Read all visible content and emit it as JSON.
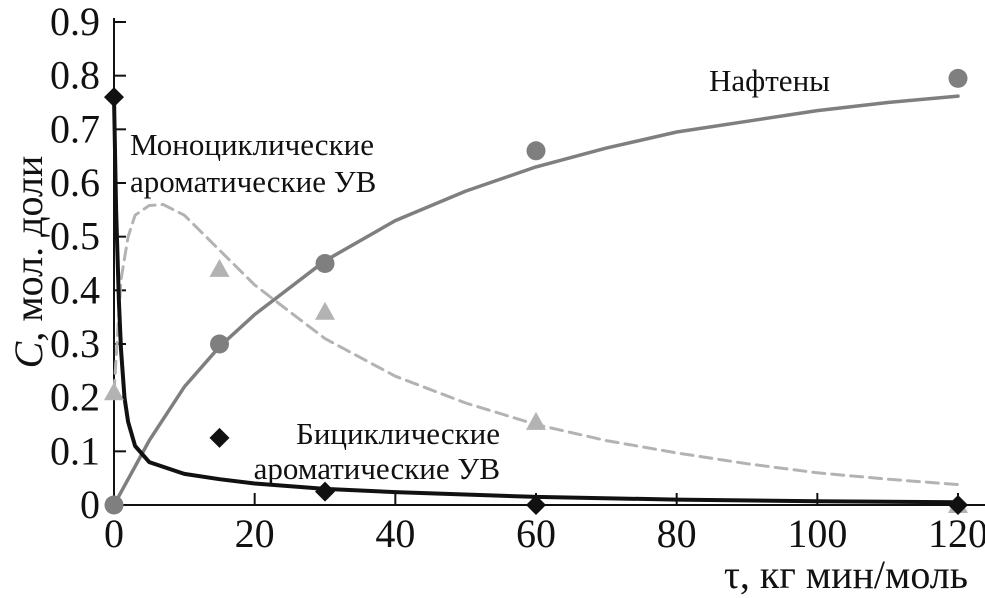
{
  "chart_data": {
    "type": "scatter",
    "xlabel": "τ, кг мин/моль",
    "ylabel_italic": "C",
    "ylabel_rest": ", мол. доли",
    "xlim": [
      0,
      120
    ],
    "ylim": [
      0,
      0.9
    ],
    "xticks": [
      0,
      20,
      40,
      60,
      80,
      100,
      120
    ],
    "yticks": [
      0,
      0.1,
      0.2,
      0.3,
      0.4,
      0.5,
      0.6,
      0.7,
      0.8,
      0.9
    ],
    "xtick_labels": [
      "0",
      "20",
      "40",
      "60",
      "80",
      "100",
      "120"
    ],
    "ytick_labels": [
      "0",
      "0.1",
      "0.2",
      "0.3",
      "0.4",
      "0.5",
      "0.6",
      "0.7",
      "0.8",
      "0.9"
    ],
    "grid": false,
    "series": [
      {
        "name": "Нафтены",
        "label_lines": [
          "Нафтены"
        ],
        "marker": "circle",
        "color": "#7f7f7f",
        "line_style": "solid",
        "points": [
          [
            0,
            0
          ],
          [
            15,
            0.3
          ],
          [
            30,
            0.45
          ],
          [
            60,
            0.66
          ],
          [
            120,
            0.795
          ]
        ],
        "fit": [
          [
            0,
            0
          ],
          [
            5,
            0.12
          ],
          [
            10,
            0.22
          ],
          [
            15,
            0.295
          ],
          [
            20,
            0.355
          ],
          [
            30,
            0.455
          ],
          [
            40,
            0.53
          ],
          [
            50,
            0.585
          ],
          [
            60,
            0.63
          ],
          [
            70,
            0.665
          ],
          [
            80,
            0.695
          ],
          [
            90,
            0.715
          ],
          [
            100,
            0.735
          ],
          [
            110,
            0.75
          ],
          [
            120,
            0.762
          ]
        ]
      },
      {
        "name": "Моноциклические ароматические УВ",
        "label_lines": [
          "Моноциклические",
          "ароматические УВ"
        ],
        "marker": "triangle",
        "color": "#b3b3b3",
        "line_style": "dashed",
        "points": [
          [
            0,
            0.21
          ],
          [
            15,
            0.44
          ],
          [
            30,
            0.36
          ],
          [
            60,
            0.155
          ],
          [
            120,
            0.0
          ]
        ],
        "fit": [
          [
            0,
            0.21
          ],
          [
            1,
            0.42
          ],
          [
            2,
            0.5
          ],
          [
            3,
            0.54
          ],
          [
            5,
            0.558
          ],
          [
            7,
            0.56
          ],
          [
            10,
            0.54
          ],
          [
            15,
            0.475
          ],
          [
            20,
            0.41
          ],
          [
            30,
            0.31
          ],
          [
            40,
            0.24
          ],
          [
            50,
            0.19
          ],
          [
            60,
            0.15
          ],
          [
            70,
            0.12
          ],
          [
            80,
            0.097
          ],
          [
            90,
            0.077
          ],
          [
            100,
            0.06
          ],
          [
            110,
            0.048
          ],
          [
            120,
            0.038
          ]
        ]
      },
      {
        "name": "Бициклические ароматические УВ",
        "label_lines": [
          "Бициклические",
          "ароматические УВ"
        ],
        "marker": "diamond",
        "color": "#111111",
        "line_style": "solid",
        "points": [
          [
            0,
            0.76
          ],
          [
            15,
            0.125
          ],
          [
            30,
            0.025
          ],
          [
            60,
            0.0
          ],
          [
            120,
            0.0
          ]
        ],
        "fit": [
          [
            0,
            0.76
          ],
          [
            0.3,
            0.55
          ],
          [
            0.7,
            0.38
          ],
          [
            1,
            0.29
          ],
          [
            1.5,
            0.2
          ],
          [
            2,
            0.155
          ],
          [
            3,
            0.11
          ],
          [
            5,
            0.08
          ],
          [
            10,
            0.058
          ],
          [
            15,
            0.048
          ],
          [
            20,
            0.04
          ],
          [
            30,
            0.03
          ],
          [
            40,
            0.024
          ],
          [
            60,
            0.015
          ],
          [
            80,
            0.01
          ],
          [
            100,
            0.007
          ],
          [
            120,
            0.005
          ]
        ]
      }
    ]
  }
}
